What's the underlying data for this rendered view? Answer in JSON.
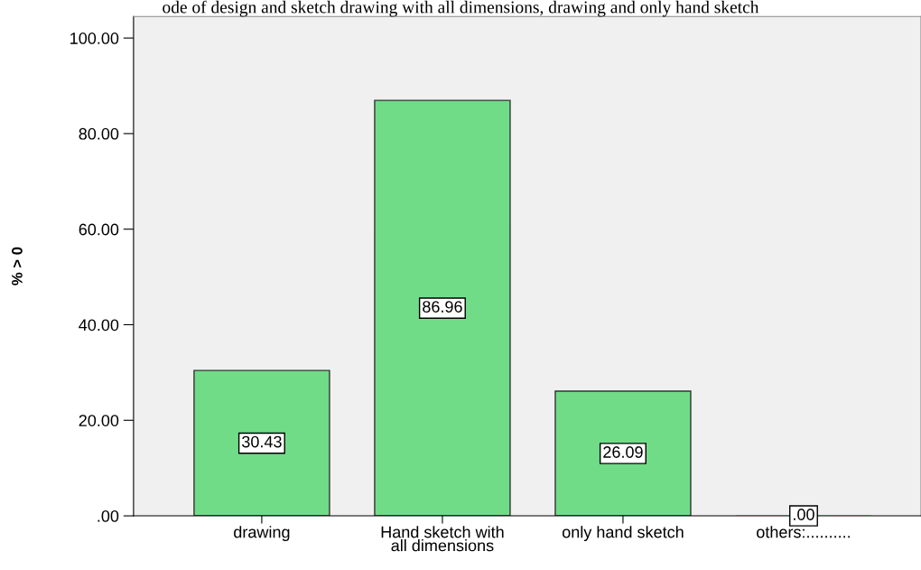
{
  "chart_data": {
    "type": "bar",
    "title": "ode of design and sketch drawing with all dimensions, drawing and only hand sketch",
    "ylabel": "% > 0",
    "categories": [
      "drawing",
      "Hand sketch with\nall dimensions",
      "only hand sketch",
      "others:.........."
    ],
    "values": [
      30.43,
      86.96,
      26.09,
      0
    ],
    "value_labels": [
      "30.43",
      "86.96",
      "26.09",
      ".00"
    ],
    "color": "#70dc88",
    "ylim": [
      0,
      104.5
    ],
    "yticks": [
      {
        "value": 0,
        "label": ".00"
      },
      {
        "value": 20,
        "label": "20.00"
      },
      {
        "value": 40,
        "label": "40.00"
      },
      {
        "value": 60,
        "label": "60.00"
      },
      {
        "value": 80,
        "label": "80.00"
      },
      {
        "value": 100,
        "label": "100.00"
      }
    ],
    "grid": false,
    "legend": false
  }
}
